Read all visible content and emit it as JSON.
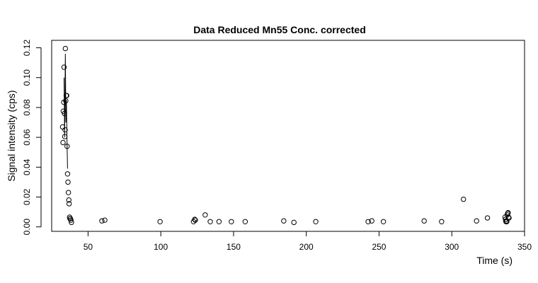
{
  "chart_data": {
    "type": "scatter",
    "title": "Data Reduced Mn55 Conc. corrected",
    "xlabel": "Time (s)",
    "ylabel": "Signal intensity (cps)",
    "xlim": [
      25,
      350
    ],
    "ylim": [
      -0.003,
      0.125
    ],
    "x_ticks": [
      50,
      100,
      150,
      200,
      250,
      300,
      350
    ],
    "y_ticks": [
      0.0,
      0.02,
      0.04,
      0.06,
      0.08,
      0.1,
      0.12
    ],
    "y_tick_labels": [
      "0.00",
      "0.02",
      "0.04",
      "0.06",
      "0.08",
      "0.10",
      "0.12"
    ],
    "grid": false,
    "legend": "none",
    "points": [
      {
        "x": 32.5,
        "y": 0.067
      },
      {
        "x": 32.8,
        "y": 0.0565
      },
      {
        "x": 33.0,
        "y": 0.0775
      },
      {
        "x": 33.3,
        "y": 0.0835
      },
      {
        "x": 33.5,
        "y": 0.107
      },
      {
        "x": 33.8,
        "y": 0.076
      },
      {
        "x": 34.0,
        "y": 0.0605
      },
      {
        "x": 34.2,
        "y": 0.065
      },
      {
        "x": 34.4,
        "y": 0.1195
      },
      {
        "x": 34.7,
        "y": 0.0845
      },
      {
        "x": 35.0,
        "y": 0.088
      },
      {
        "x": 35.3,
        "y": 0.088
      },
      {
        "x": 35.6,
        "y": 0.054
      },
      {
        "x": 35.9,
        "y": 0.0355
      },
      {
        "x": 36.2,
        "y": 0.03
      },
      {
        "x": 36.5,
        "y": 0.023
      },
      {
        "x": 36.8,
        "y": 0.018
      },
      {
        "x": 37.0,
        "y": 0.0155
      },
      {
        "x": 37.3,
        "y": 0.0065
      },
      {
        "x": 37.6,
        "y": 0.0055
      },
      {
        "x": 37.9,
        "y": 0.0055
      },
      {
        "x": 38.2,
        "y": 0.0045
      },
      {
        "x": 38.6,
        "y": 0.003
      },
      {
        "x": 59.5,
        "y": 0.004
      },
      {
        "x": 61.5,
        "y": 0.0045
      },
      {
        "x": 99.5,
        "y": 0.0035
      },
      {
        "x": 122.5,
        "y": 0.0035
      },
      {
        "x": 123.3,
        "y": 0.005
      },
      {
        "x": 123.7,
        "y": 0.0045
      },
      {
        "x": 130.5,
        "y": 0.008
      },
      {
        "x": 134,
        "y": 0.0035
      },
      {
        "x": 140,
        "y": 0.0035
      },
      {
        "x": 148.5,
        "y": 0.0035
      },
      {
        "x": 158,
        "y": 0.0035
      },
      {
        "x": 184.5,
        "y": 0.004
      },
      {
        "x": 191.5,
        "y": 0.003
      },
      {
        "x": 206.5,
        "y": 0.0035
      },
      {
        "x": 242.5,
        "y": 0.0035
      },
      {
        "x": 245,
        "y": 0.004
      },
      {
        "x": 253,
        "y": 0.0035
      },
      {
        "x": 281,
        "y": 0.004
      },
      {
        "x": 293,
        "y": 0.0035
      },
      {
        "x": 308,
        "y": 0.0185
      },
      {
        "x": 317,
        "y": 0.004
      },
      {
        "x": 324.5,
        "y": 0.006
      },
      {
        "x": 336.6,
        "y": 0.0065
      },
      {
        "x": 336.9,
        "y": 0.005
      },
      {
        "x": 337.2,
        "y": 0.0035
      },
      {
        "x": 337.5,
        "y": 0.004
      },
      {
        "x": 337.8,
        "y": 0.0035
      },
      {
        "x": 338.1,
        "y": 0.008
      },
      {
        "x": 338.4,
        "y": 0.009
      },
      {
        "x": 338.7,
        "y": 0.0095
      },
      {
        "x": 339.0,
        "y": 0.0065
      },
      {
        "x": 339.3,
        "y": 0.006
      }
    ],
    "line": [
      {
        "x": 33.5,
        "y": 0.1
      },
      {
        "x": 33.9,
        "y": 0.06
      },
      {
        "x": 34.4,
        "y": 0.116
      },
      {
        "x": 34.8,
        "y": 0.07
      },
      {
        "x": 35.1,
        "y": 0.085
      },
      {
        "x": 35.5,
        "y": 0.06
      },
      {
        "x": 35.9,
        "y": 0.039
      }
    ]
  }
}
